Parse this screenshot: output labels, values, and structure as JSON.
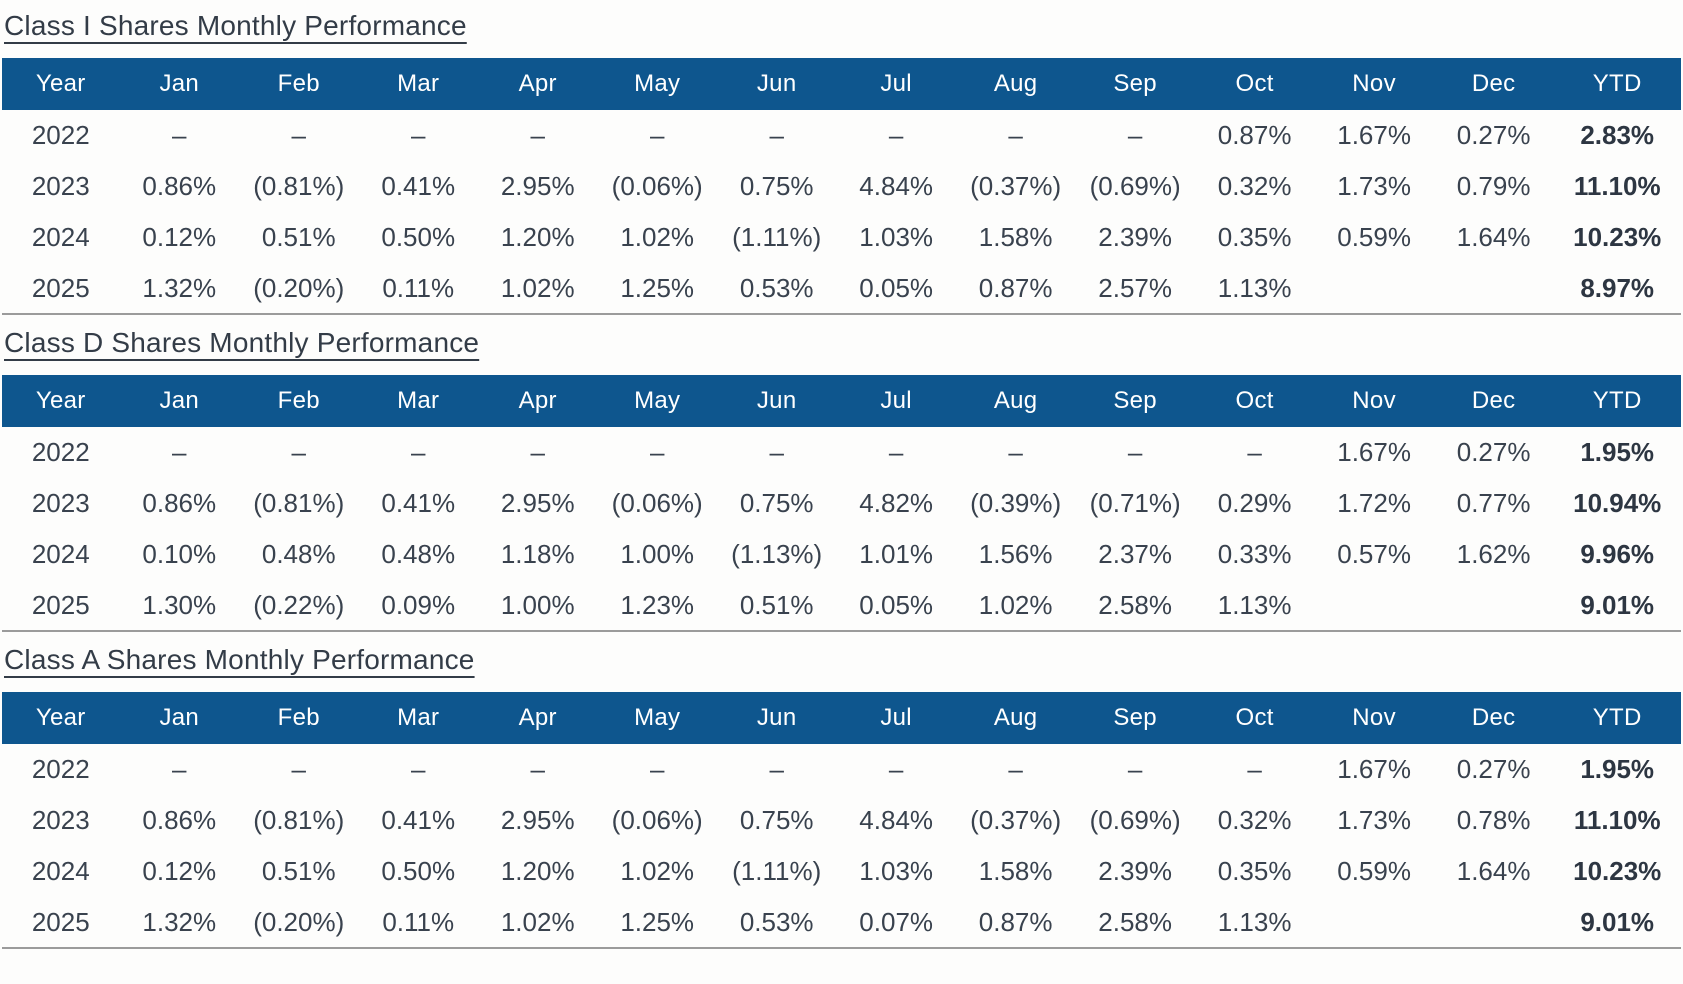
{
  "colors": {
    "header_bg": "#0e568e",
    "header_text": "#ffffff",
    "body_text": "#39424e",
    "title_text": "#333c47",
    "ytd_text": "#2d3642",
    "table_bottom_border": "#9b9b9b",
    "page_background": "#fdfdfc"
  },
  "columns": [
    "Year",
    "Jan",
    "Feb",
    "Mar",
    "Apr",
    "May",
    "Jun",
    "Jul",
    "Aug",
    "Sep",
    "Oct",
    "Nov",
    "Dec",
    "YTD"
  ],
  "tables": [
    {
      "title": "Class I Shares Monthly Performance",
      "rows": [
        {
          "year": "2022",
          "cells": [
            "–",
            "–",
            "–",
            "–",
            "–",
            "–",
            "–",
            "–",
            "–",
            "0.87%",
            "1.67%",
            "0.27%"
          ],
          "ytd": "2.83%"
        },
        {
          "year": "2023",
          "cells": [
            "0.86%",
            "(0.81%)",
            "0.41%",
            "2.95%",
            "(0.06%)",
            "0.75%",
            "4.84%",
            "(0.37%)",
            "(0.69%)",
            "0.32%",
            "1.73%",
            "0.79%"
          ],
          "ytd": "11.10%"
        },
        {
          "year": "2024",
          "cells": [
            "0.12%",
            "0.51%",
            "0.50%",
            "1.20%",
            "1.02%",
            "(1.11%)",
            "1.03%",
            "1.58%",
            "2.39%",
            "0.35%",
            "0.59%",
            "1.64%"
          ],
          "ytd": "10.23%"
        },
        {
          "year": "2025",
          "cells": [
            "1.32%",
            "(0.20%)",
            "0.11%",
            "1.02%",
            "1.25%",
            "0.53%",
            "0.05%",
            "0.87%",
            "2.57%",
            "1.13%",
            "",
            ""
          ],
          "ytd": "8.97%"
        }
      ]
    },
    {
      "title": "Class D Shares Monthly Performance",
      "rows": [
        {
          "year": "2022",
          "cells": [
            "–",
            "–",
            "–",
            "–",
            "–",
            "–",
            "–",
            "–",
            "–",
            "–",
            "1.67%",
            "0.27%"
          ],
          "ytd": "1.95%"
        },
        {
          "year": "2023",
          "cells": [
            "0.86%",
            "(0.81%)",
            "0.41%",
            "2.95%",
            "(0.06%)",
            "0.75%",
            "4.82%",
            "(0.39%)",
            "(0.71%)",
            "0.29%",
            "1.72%",
            "0.77%"
          ],
          "ytd": "10.94%"
        },
        {
          "year": "2024",
          "cells": [
            "0.10%",
            "0.48%",
            "0.48%",
            "1.18%",
            "1.00%",
            "(1.13%)",
            "1.01%",
            "1.56%",
            "2.37%",
            "0.33%",
            "0.57%",
            "1.62%"
          ],
          "ytd": "9.96%"
        },
        {
          "year": "2025",
          "cells": [
            "1.30%",
            "(0.22%)",
            "0.09%",
            "1.00%",
            "1.23%",
            "0.51%",
            "0.05%",
            "1.02%",
            "2.58%",
            "1.13%",
            "",
            ""
          ],
          "ytd": "9.01%"
        }
      ]
    },
    {
      "title": "Class A Shares Monthly Performance",
      "rows": [
        {
          "year": "2022",
          "cells": [
            "–",
            "–",
            "–",
            "–",
            "–",
            "–",
            "–",
            "–",
            "–",
            "–",
            "1.67%",
            "0.27%"
          ],
          "ytd": "1.95%"
        },
        {
          "year": "2023",
          "cells": [
            "0.86%",
            "(0.81%)",
            "0.41%",
            "2.95%",
            "(0.06%)",
            "0.75%",
            "4.84%",
            "(0.37%)",
            "(0.69%)",
            "0.32%",
            "1.73%",
            "0.78%"
          ],
          "ytd": "11.10%"
        },
        {
          "year": "2024",
          "cells": [
            "0.12%",
            "0.51%",
            "0.50%",
            "1.20%",
            "1.02%",
            "(1.11%)",
            "1.03%",
            "1.58%",
            "2.39%",
            "0.35%",
            "0.59%",
            "1.64%"
          ],
          "ytd": "10.23%"
        },
        {
          "year": "2025",
          "cells": [
            "1.32%",
            "(0.20%)",
            "0.11%",
            "1.02%",
            "1.25%",
            "0.53%",
            "0.07%",
            "0.87%",
            "2.58%",
            "1.13%",
            "",
            ""
          ],
          "ytd": "9.01%"
        }
      ]
    }
  ]
}
